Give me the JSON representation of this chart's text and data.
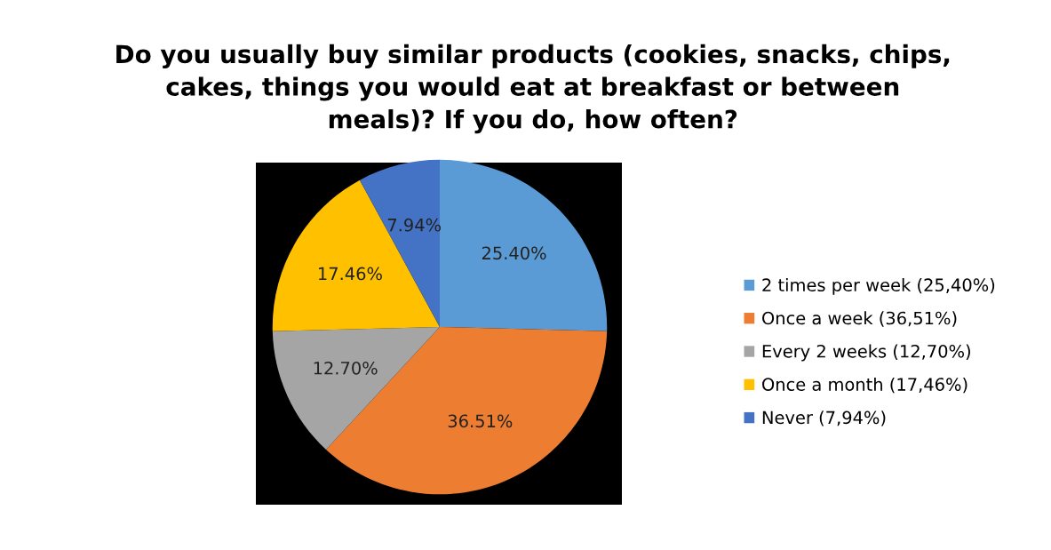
{
  "chart_data": {
    "type": "pie",
    "title": "Do you usually buy similar products (cookies, snacks, chips,\ncakes, things you would eat at breakfast or between\nmeals)? If you do, how often?",
    "categories": [
      "2 times per week (25,40%)",
      "Once a week (36,51%)",
      "Every 2 weeks (12,70%)",
      "Once a month (17,46%)",
      "Never (7,94%)"
    ],
    "values": [
      25.4,
      36.51,
      12.7,
      17.46,
      7.94
    ],
    "colors": [
      "#5b9bd5",
      "#ed7d31",
      "#a5a5a5",
      "#ffc000",
      "#4472c4"
    ],
    "value_labels": [
      "25.40%",
      "36.51%",
      "12.70%",
      "17.46%",
      "7.94%"
    ],
    "legend": "right"
  }
}
